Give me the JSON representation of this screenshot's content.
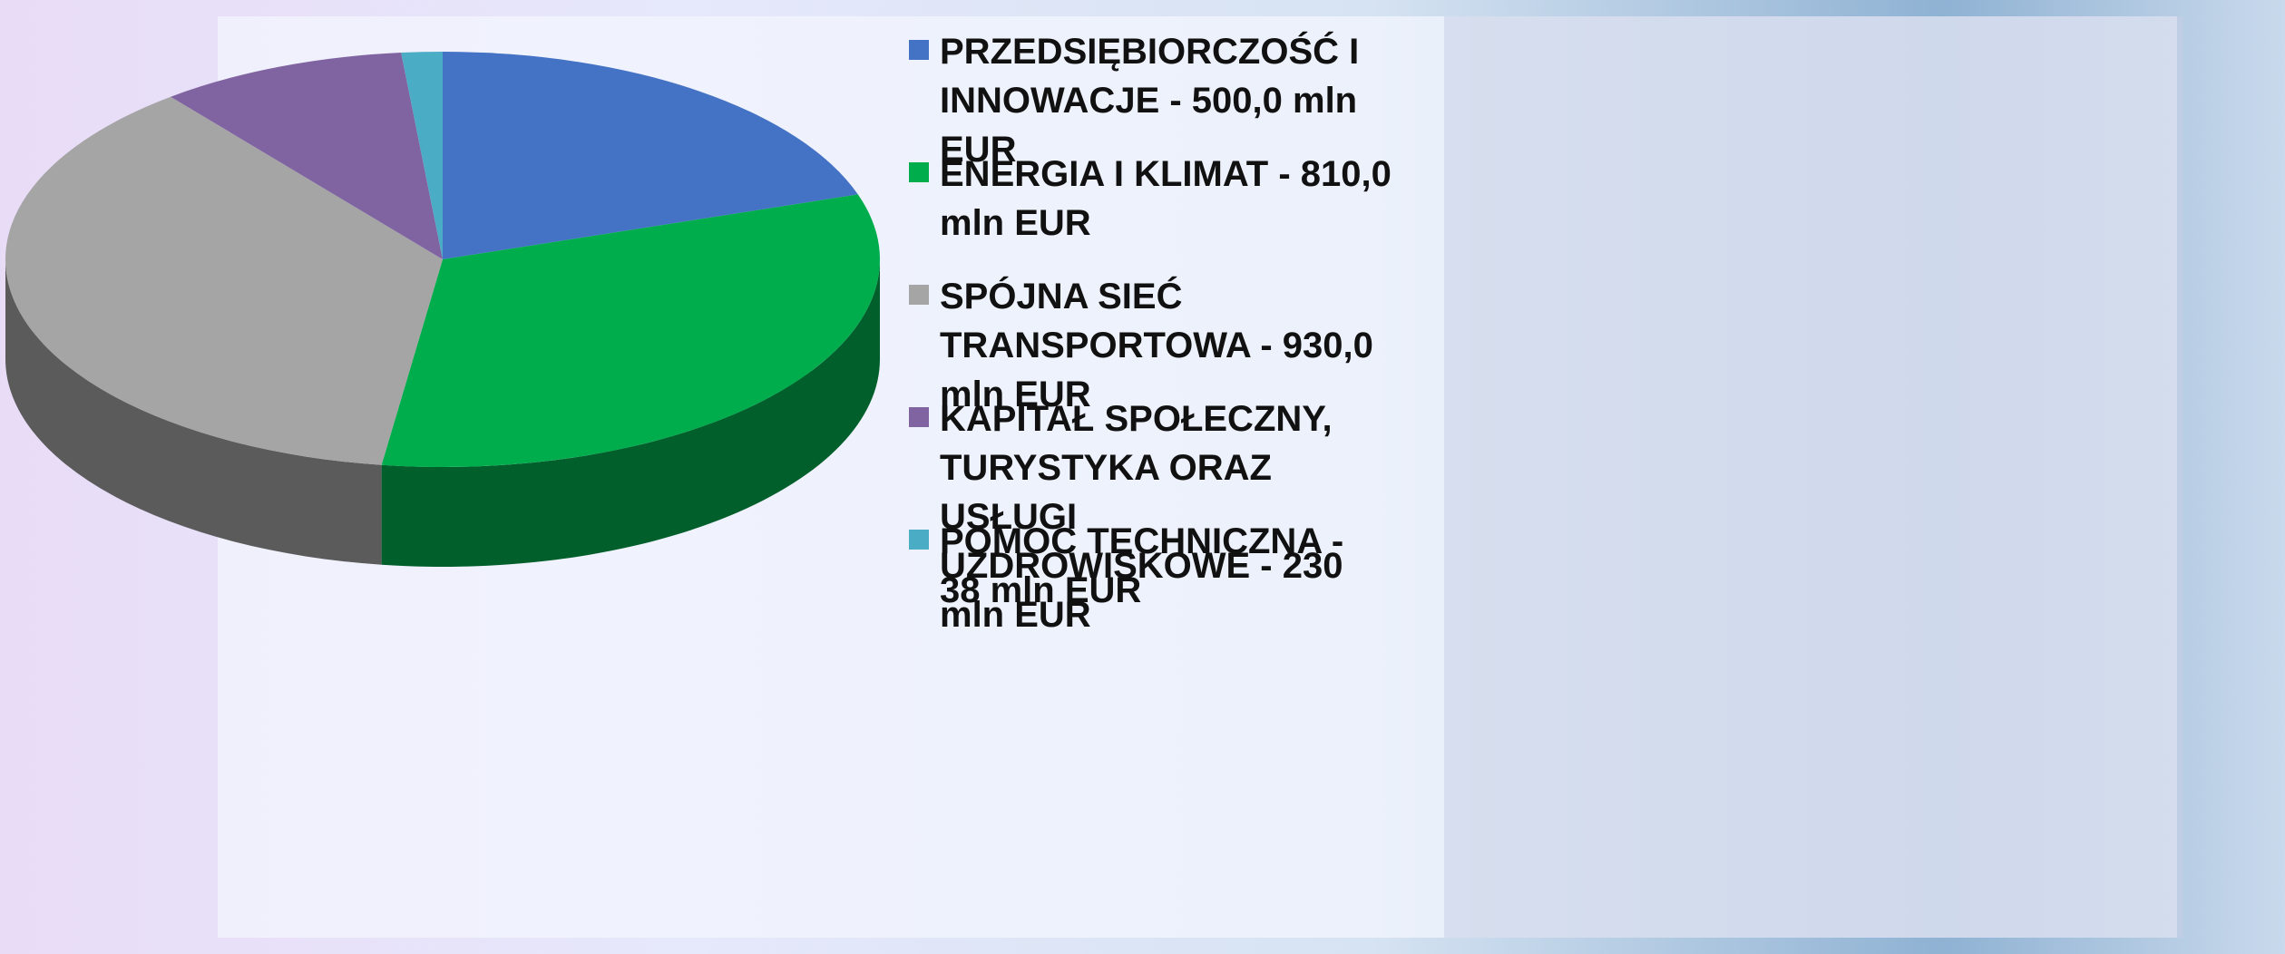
{
  "chart_data": {
    "type": "pie",
    "categories": [
      "PRZEDSIĘBIORCZOŚĆ I INNOWACJE - 500,0 mln EUR",
      "ENERGIA I KLIMAT - 810,0 mln EUR",
      "SPÓJNA SIEĆ TRANSPORTOWA - 930,0 mln EUR",
      "KAPITAŁ SPOŁECZNY, TURYSTYKA ORAZ USŁUGI UZDROWISKOWE - 230 mln EUR",
      "POMOC TECHNICZNA - 38 mln EUR"
    ],
    "values": [
      500,
      810,
      930,
      230,
      38
    ],
    "colors": [
      "#4472c4",
      "#00ad4c",
      "#a5a5a5",
      "#8064a2",
      "#4bacc6"
    ],
    "legend": "right"
  }
}
